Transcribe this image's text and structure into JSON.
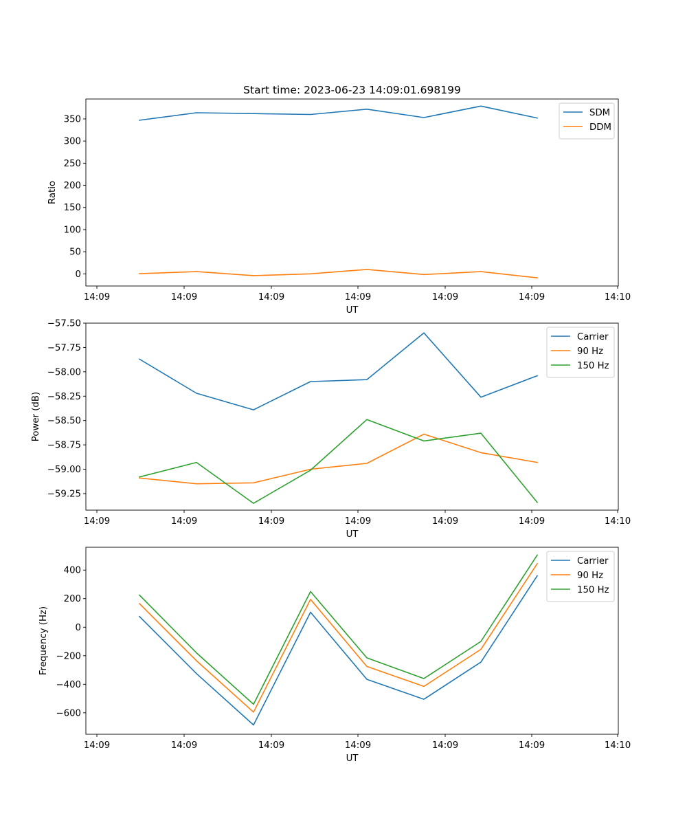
{
  "chart_data": [
    {
      "type": "line",
      "title": "Start time: 2023-06-23 14:09:01.698199",
      "xlabel": "UT",
      "ylabel": "Ratio",
      "x_ticks": [
        "14:09",
        "14:09",
        "14:09",
        "14:09",
        "14:09",
        "14:09",
        "14:10"
      ],
      "y_ticks": [
        0,
        50,
        100,
        150,
        200,
        250,
        300,
        350
      ],
      "ylim": [
        -27.5,
        395
      ],
      "x": [
        1,
        2,
        3,
        4,
        5,
        6,
        7,
        8
      ],
      "series": [
        {
          "name": "SDM",
          "color": "#1f77b4",
          "values": [
            347,
            364,
            362,
            360,
            372,
            353,
            379,
            352
          ]
        },
        {
          "name": "DDM",
          "color": "#ff7f0e",
          "values": [
            0.5,
            5,
            -4,
            0,
            10,
            -1.5,
            5,
            -9
          ]
        }
      ],
      "legend": "top-right"
    },
    {
      "type": "line",
      "title": "",
      "xlabel": "UT",
      "ylabel": "Power (dB)",
      "x_ticks": [
        "14:09",
        "14:09",
        "14:09",
        "14:09",
        "14:09",
        "14:09",
        "14:10"
      ],
      "y_ticks": [
        -57.5,
        -57.75,
        -58.0,
        -58.25,
        -58.5,
        -58.75,
        -59.0,
        -59.25
      ],
      "y_tick_labels": [
        "−57.50",
        "−57.75",
        "−58.00",
        "−58.25",
        "−58.50",
        "−58.75",
        "−59.00",
        "−59.25"
      ],
      "ylim": [
        -59.42,
        -57.5
      ],
      "x": [
        1,
        2,
        3,
        4,
        5,
        6,
        7,
        8
      ],
      "series": [
        {
          "name": "Carrier",
          "color": "#1f77b4",
          "values": [
            -57.87,
            -58.22,
            -58.39,
            -58.1,
            -58.08,
            -57.6,
            -58.26,
            -58.04
          ]
        },
        {
          "name": "90 Hz",
          "color": "#ff7f0e",
          "values": [
            -59.09,
            -59.15,
            -59.14,
            -59.0,
            -58.94,
            -58.64,
            -58.83,
            -58.93
          ]
        },
        {
          "name": "150 Hz",
          "color": "#2ca02c",
          "values": [
            -59.08,
            -58.93,
            -59.35,
            -59.01,
            -58.49,
            -58.71,
            -58.63,
            -59.34
          ]
        }
      ],
      "legend": "top-right"
    },
    {
      "type": "line",
      "title": "",
      "xlabel": "UT",
      "ylabel": "Frequency (Hz)",
      "x_ticks": [
        "14:09",
        "14:09",
        "14:09",
        "14:09",
        "14:09",
        "14:09",
        "14:10"
      ],
      "y_ticks": [
        400,
        200,
        0,
        -200,
        -400,
        -600
      ],
      "y_tick_labels": [
        "400",
        "200",
        "0",
        "−200",
        "−400",
        "−600"
      ],
      "ylim": [
        -750,
        560
      ],
      "x": [
        1,
        2,
        3,
        4,
        5,
        6,
        7,
        8
      ],
      "series": [
        {
          "name": "Carrier",
          "color": "#1f77b4",
          "values": [
            75,
            -325,
            -685,
            105,
            -365,
            -505,
            -245,
            360
          ]
        },
        {
          "name": "90 Hz",
          "color": "#ff7f0e",
          "values": [
            165,
            -235,
            -595,
            195,
            -275,
            -415,
            -155,
            445
          ]
        },
        {
          "name": "150 Hz",
          "color": "#2ca02c",
          "values": [
            225,
            -180,
            -540,
            250,
            -215,
            -360,
            -100,
            505
          ]
        }
      ],
      "legend": "top-right"
    }
  ]
}
